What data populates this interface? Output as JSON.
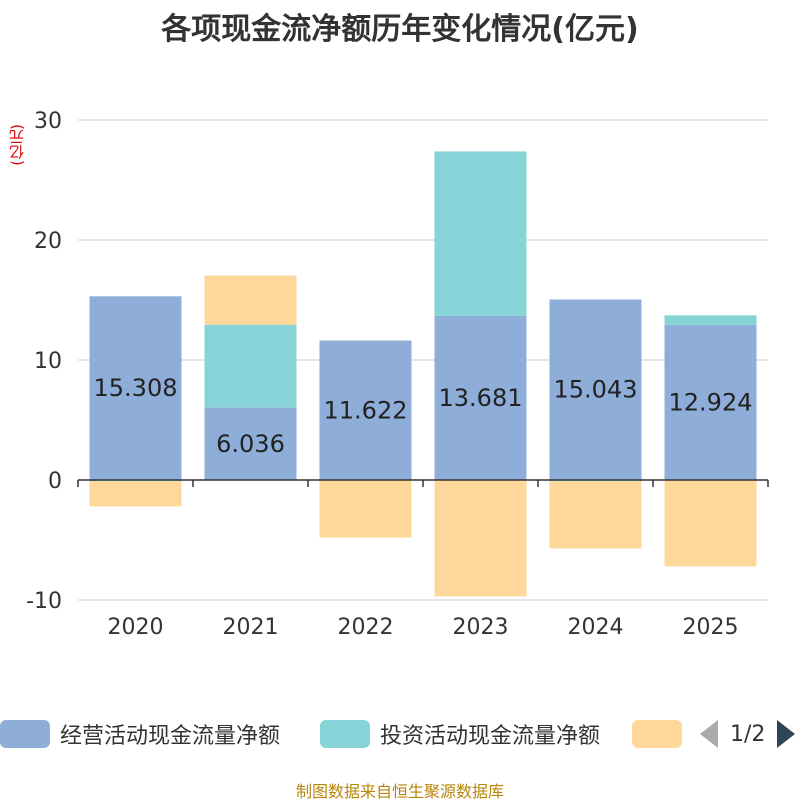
{
  "chart_data": {
    "type": "bar",
    "stacked": true,
    "title": "各项现金流净额历年变化情况(亿元)",
    "ylabel": "(亿元)",
    "xlabel": "",
    "ylim": [
      -10,
      30
    ],
    "yticks": [
      -10,
      0,
      10,
      20,
      30
    ],
    "categories": [
      "2020",
      "2021",
      "2022",
      "2023",
      "2024",
      "2025"
    ],
    "series": [
      {
        "name": "经营活动现金流量净额",
        "color": "#8eadd9",
        "values": [
          15.308,
          6.036,
          11.622,
          13.681,
          15.043,
          12.924
        ]
      },
      {
        "name": "投资活动现金流量净额",
        "color": "#86d4d7",
        "values": [
          -0.1,
          6.9,
          0,
          13.7,
          -0.1,
          0.8
        ]
      },
      {
        "name": "",
        "color": "#fed89b",
        "values": [
          -2.1,
          4.1,
          -4.8,
          -9.7,
          -5.6,
          -7.2
        ]
      }
    ],
    "data_labels": [
      "15.308",
      "6.036",
      "11.622",
      "13.681",
      "15.043",
      "12.924"
    ],
    "legend_position": "bottom"
  },
  "legend": {
    "page_indicator": "1/2"
  },
  "source": "制图数据来自恒生聚源数据库"
}
